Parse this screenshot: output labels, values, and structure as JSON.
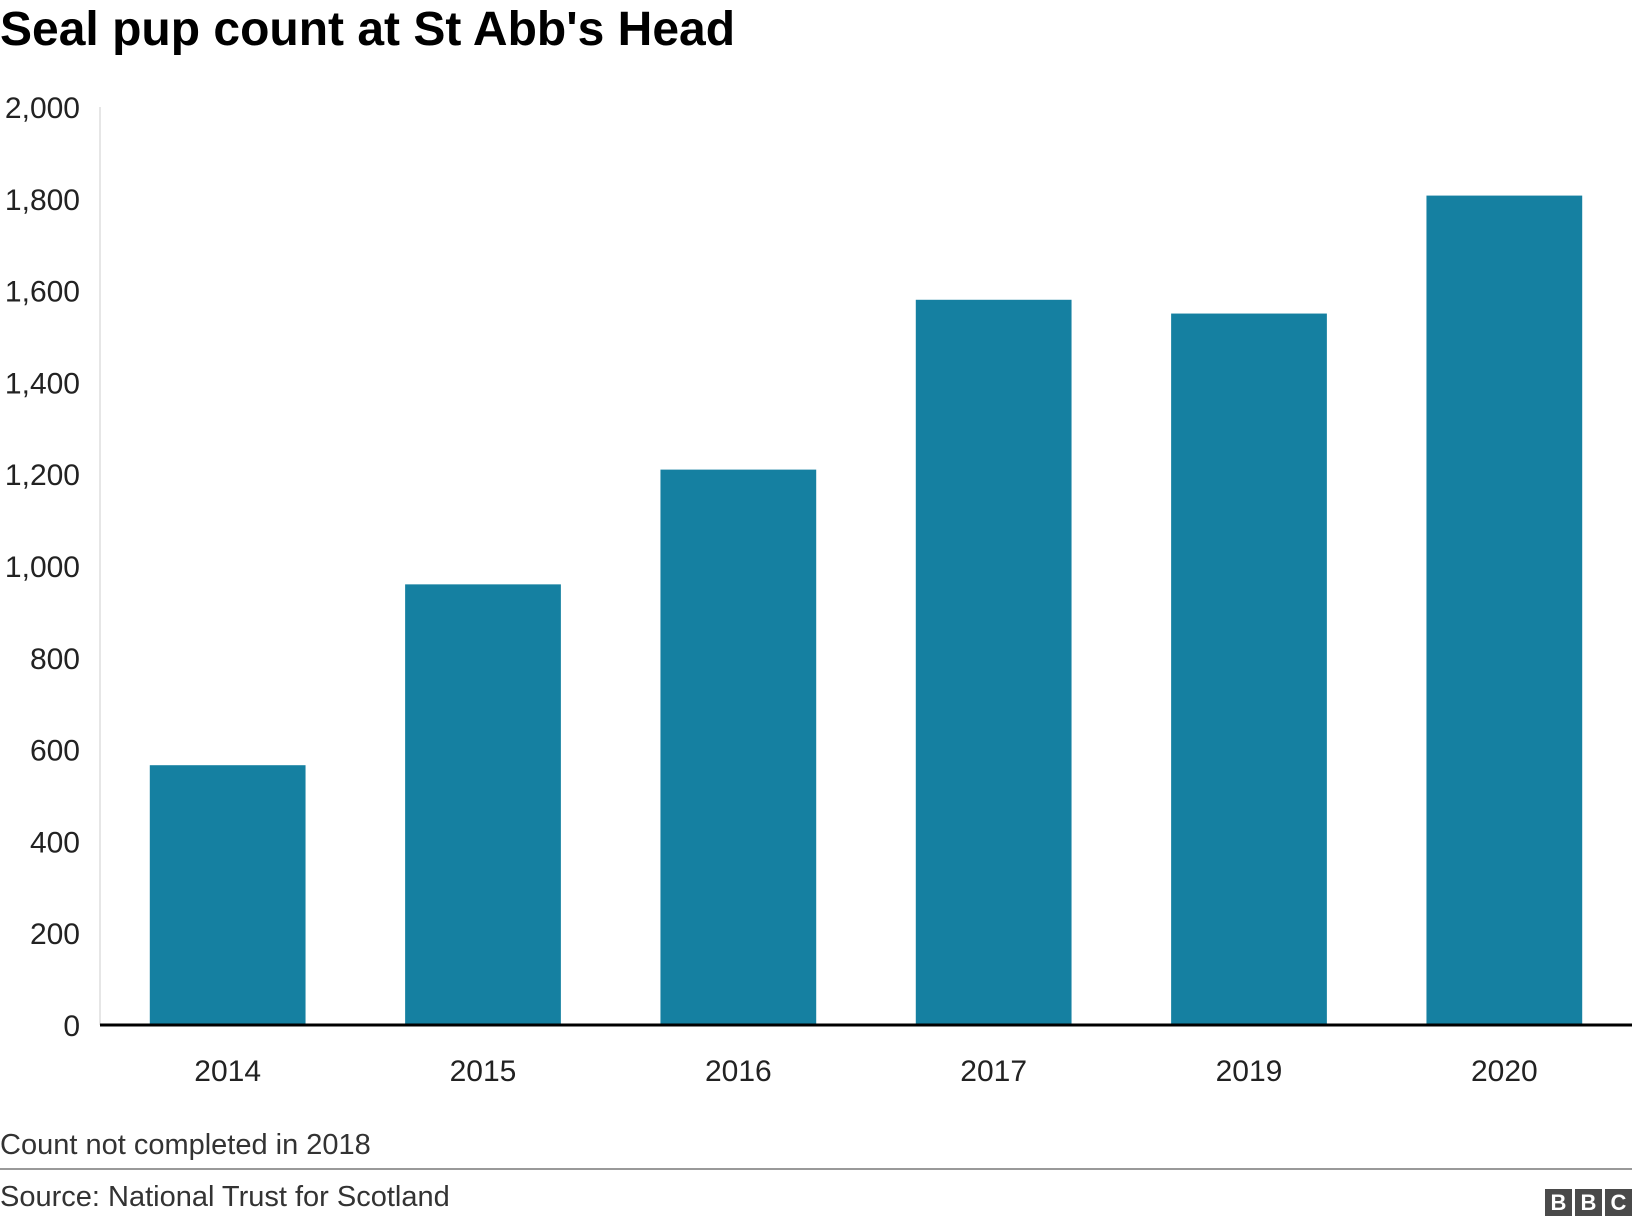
{
  "chart_data": {
    "type": "bar",
    "title": "Seal pup count at St Abb's Head",
    "categories": [
      "2014",
      "2015",
      "2016",
      "2017",
      "2019",
      "2020"
    ],
    "values": [
      566,
      960,
      1210,
      1580,
      1550,
      1807
    ],
    "xlabel": "",
    "ylabel": "",
    "ylim": [
      0,
      2000
    ],
    "yticks": [
      0,
      200,
      400,
      600,
      800,
      1000,
      1200,
      1400,
      1600,
      1800,
      2000
    ],
    "ytick_labels": [
      "0",
      "200",
      "400",
      "600",
      "800",
      "1,000",
      "1,200",
      "1,400",
      "1,600",
      "1,800",
      "2,000"
    ],
    "grid": false,
    "legend": "none",
    "bar_color": "#1580a1"
  },
  "note": "Count not completed in 2018",
  "source": "Source: National Trust for Scotland",
  "logo": {
    "text": "BBC",
    "letters": [
      "B",
      "B",
      "C"
    ]
  }
}
